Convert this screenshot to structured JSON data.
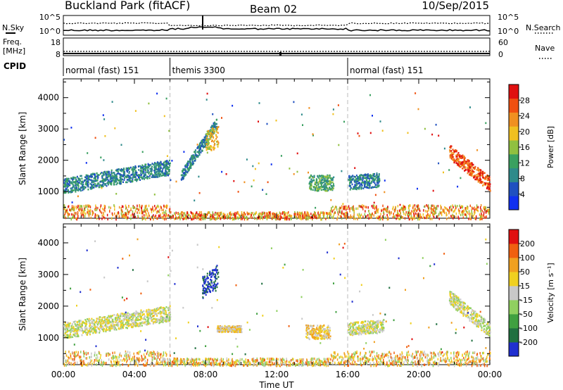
{
  "header": {
    "title": "Buckland Park (fitACF)",
    "beam": "Beam 02",
    "date": "10/Sep/2015"
  },
  "panels": {
    "nsky_label": "N.Sky",
    "nsearch_label": "N.Search",
    "freq_label_1": "Freq.",
    "freq_label_2": "[MHz]",
    "nave_label": "Nave",
    "cpid_label": "CPID",
    "noise_ticks_left": [
      "10^5",
      "10^0"
    ],
    "noise_ticks_right": [
      "10^5",
      "10^0"
    ],
    "freq_ticks": [
      "18",
      "8"
    ],
    "nave_ticks": [
      "60",
      "0"
    ]
  },
  "cpid_segments": [
    {
      "label": "normal (fast) 151",
      "start_h": 0,
      "end_h": 6
    },
    {
      "label": "themis 3300",
      "start_h": 6,
      "end_h": 16
    },
    {
      "label": "normal (fast) 151",
      "start_h": 16,
      "end_h": 24
    }
  ],
  "colors": {
    "power": [
      "#1030f0",
      "#2050c0",
      "#2e8a8a",
      "#3aa060",
      "#90c040",
      "#f0c020",
      "#f09020",
      "#f05010",
      "#e01010"
    ],
    "velocity": [
      "#2030d0",
      "#207040",
      "#40a040",
      "#90d060",
      "#c8c8c8",
      "#f0d020",
      "#f0a020",
      "#f06010",
      "#e01010"
    ]
  },
  "chart_data": [
    {
      "type": "scatter",
      "name": "power",
      "ylabel": "Slant Range [km]",
      "xlabel": "Time UT",
      "xlim": [
        0,
        24
      ],
      "ylim": [
        150,
        4600
      ],
      "yticks": [
        1000,
        2000,
        3000,
        4000
      ],
      "xticks": [
        "00:00",
        "04:00",
        "08:00",
        "12:00",
        "16:00",
        "20:00",
        "00:00"
      ],
      "colorbar_label": "Power [dB]",
      "colorbar_ticks": [
        "28",
        "24",
        "20",
        "16",
        "12",
        "8",
        "4"
      ],
      "regions": [
        {
          "t0": 0.0,
          "t1": 6.0,
          "r_start": 1200,
          "r_end": 1800,
          "width": 480,
          "level": 2
        },
        {
          "t0": 6.6,
          "t1": 8.6,
          "r_start": 1500,
          "r_end": 3200,
          "width": 350,
          "level": 2
        },
        {
          "t0": 8.0,
          "t1": 8.7,
          "r_start": 2600,
          "r_end": 2800,
          "width": 700,
          "level": 5
        },
        {
          "t0": 13.8,
          "t1": 15.2,
          "r_start": 1300,
          "r_end": 1300,
          "width": 500,
          "level": 3
        },
        {
          "t0": 16.0,
          "t1": 17.8,
          "r_start": 1300,
          "r_end": 1400,
          "width": 450,
          "level": 2
        },
        {
          "t0": 21.7,
          "t1": 24.0,
          "r_start": 2300,
          "r_end": 1250,
          "width": 450,
          "level": 7
        }
      ],
      "ground_level": 6
    },
    {
      "type": "scatter",
      "name": "velocity",
      "ylabel": "Slant Range [km]",
      "xlabel": "Time UT",
      "xlim": [
        0,
        24
      ],
      "ylim": [
        150,
        4600
      ],
      "yticks": [
        1000,
        2000,
        3000,
        4000
      ],
      "xticks": [
        "00:00",
        "04:00",
        "08:00",
        "12:00",
        "16:00",
        "20:00",
        "00:00"
      ],
      "colorbar_label": "Velocity [m s⁻¹]",
      "colorbar_ticks": [
        "200",
        "100",
        "50",
        "15",
        "-15",
        "-50",
        "-100",
        "-200"
      ],
      "regions": [
        {
          "t0": 0.0,
          "t1": 6.0,
          "r_start": 1250,
          "r_end": 1800,
          "width": 500,
          "level": 4
        },
        {
          "t0": 7.8,
          "t1": 8.7,
          "r_start": 2600,
          "r_end": 3000,
          "width": 700,
          "level": 0
        },
        {
          "t0": 8.6,
          "t1": 10.0,
          "r_start": 1300,
          "r_end": 1300,
          "width": 200,
          "level": 5
        },
        {
          "t0": 13.6,
          "t1": 15.0,
          "r_start": 1200,
          "r_end": 1200,
          "width": 450,
          "level": 5
        },
        {
          "t0": 16.0,
          "t1": 18.0,
          "r_start": 1300,
          "r_end": 1400,
          "width": 400,
          "level": 4
        },
        {
          "t0": 21.7,
          "t1": 24.0,
          "r_start": 2300,
          "r_end": 1250,
          "width": 450,
          "level": 4
        }
      ],
      "ground_level": 5
    }
  ]
}
